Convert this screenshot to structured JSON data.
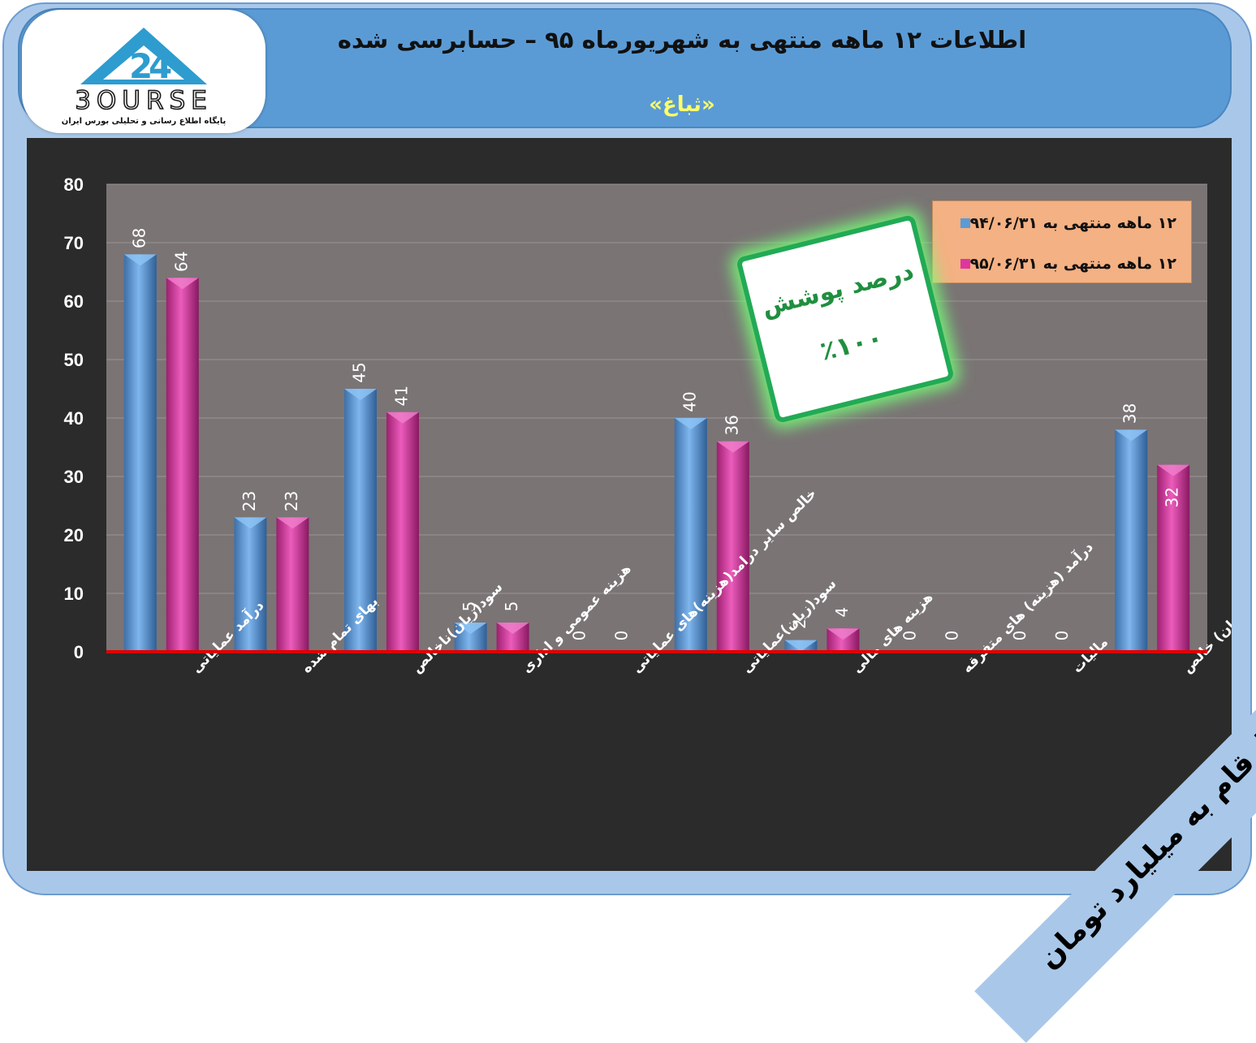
{
  "header": {
    "title": "اطلاعات ۱۲ ماهه منتهی به شهریورماه ۹۵ – حسابرسی شده",
    "symbol": "«ثباغ»"
  },
  "logo": {
    "brand_text": "3OURSE",
    "tagline": "پایگاه اطلاع رسانی و تحلیلی بورس ایران"
  },
  "badge": {
    "line1": "درصد پوشش",
    "line2": "٪۱۰۰"
  },
  "units_note": "ارقام به میلیارد تومان",
  "colors": {
    "series1": "#5b9bd5",
    "series2": "#e0359f",
    "baseline": "#e00000",
    "plot_bg": "#7a7475"
  },
  "chart_data": {
    "type": "bar",
    "categories": [
      "درآمد عملیاتی",
      "بهای تمام شده",
      "سود(زیان)ناخالص",
      "هزینه عمومی و اداری",
      "خالص سایر درامد(هزینه)های عملیاتی",
      "سود(زیان)عملیاتی",
      "هزینه های مالی",
      "درآمد (هزینه) های متفرقه",
      "مالیات",
      "سود(زیان) خالص"
    ],
    "series": [
      {
        "name": "۱۲ ماهه منتهی به ۹۴/۰۶/۳۱",
        "values": [
          68,
          23,
          45,
          5,
          0,
          40,
          2,
          0,
          0,
          38
        ]
      },
      {
        "name": "۱۲ ماهه منتهی به ۹۵/۰۶/۳۱",
        "values": [
          64,
          23,
          41,
          5,
          0,
          36,
          4,
          0,
          0,
          32
        ]
      }
    ],
    "ylim": [
      0,
      80
    ],
    "yticks": [
      0,
      10,
      20,
      30,
      40,
      50,
      60,
      70,
      80
    ],
    "grid": true,
    "legend": "top-right"
  }
}
